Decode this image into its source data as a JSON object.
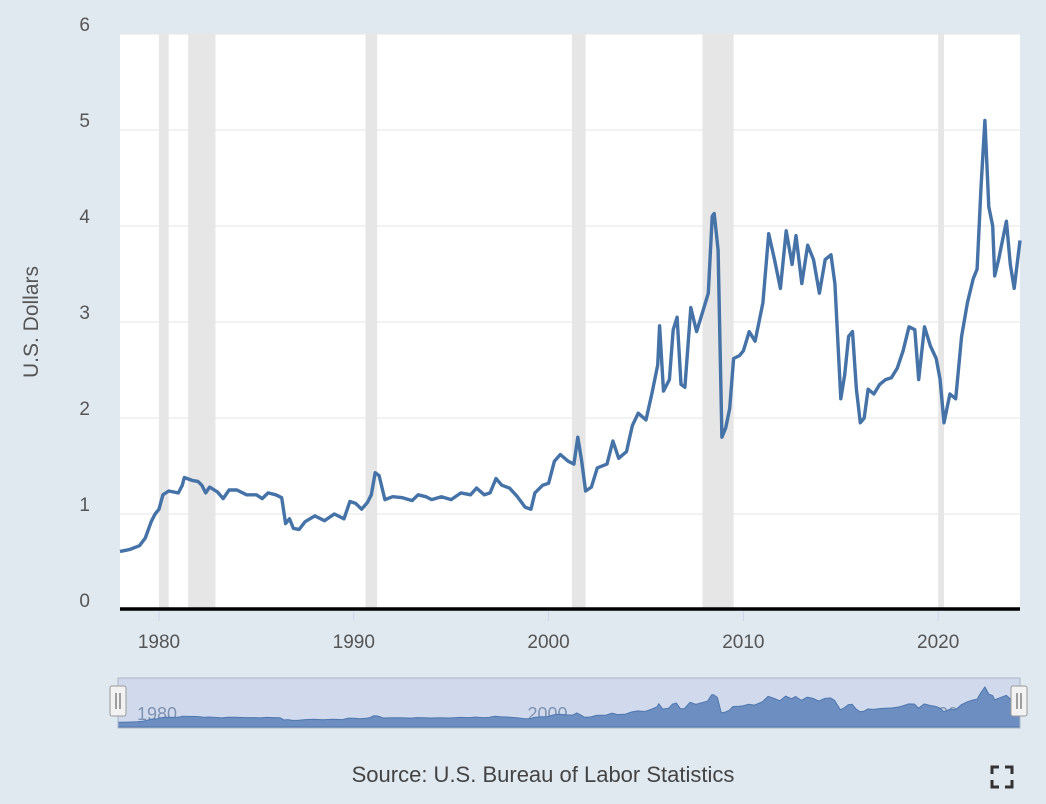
{
  "chart_data": {
    "type": "line",
    "title": "",
    "ylabel": "U.S. Dollars",
    "xlabel": "",
    "source": "Source: U.S. Bureau of Labor Statistics",
    "ylim": [
      0,
      6
    ],
    "xlim": [
      1978.0,
      2024.2
    ],
    "y_ticks": [
      "0",
      "1",
      "2",
      "3",
      "4",
      "5",
      "6"
    ],
    "x_ticks": [
      "1980",
      "1990",
      "2000",
      "2010",
      "2020"
    ],
    "navigator_ticks": [
      "1980",
      "2000",
      "2020"
    ],
    "recessions": [
      [
        1980.0,
        1980.5
      ],
      [
        1981.5,
        1982.9
      ],
      [
        1990.6,
        1991.2
      ],
      [
        2001.2,
        2001.9
      ],
      [
        2007.9,
        2009.5
      ],
      [
        2020.0,
        2020.3
      ]
    ],
    "series": [
      {
        "color": "#4572a7",
        "points": [
          [
            1978.0,
            0.61
          ],
          [
            1978.5,
            0.63
          ],
          [
            1979.0,
            0.67
          ],
          [
            1979.3,
            0.75
          ],
          [
            1979.6,
            0.92
          ],
          [
            1979.8,
            1.0
          ],
          [
            1980.0,
            1.05
          ],
          [
            1980.2,
            1.2
          ],
          [
            1980.5,
            1.24
          ],
          [
            1981.0,
            1.22
          ],
          [
            1981.2,
            1.3
          ],
          [
            1981.3,
            1.38
          ],
          [
            1981.7,
            1.35
          ],
          [
            1982.0,
            1.34
          ],
          [
            1982.2,
            1.3
          ],
          [
            1982.4,
            1.22
          ],
          [
            1982.6,
            1.28
          ],
          [
            1983.0,
            1.23
          ],
          [
            1983.3,
            1.16
          ],
          [
            1983.6,
            1.25
          ],
          [
            1984.0,
            1.25
          ],
          [
            1984.5,
            1.2
          ],
          [
            1985.0,
            1.2
          ],
          [
            1985.3,
            1.16
          ],
          [
            1985.6,
            1.22
          ],
          [
            1986.0,
            1.2
          ],
          [
            1986.3,
            1.17
          ],
          [
            1986.5,
            0.9
          ],
          [
            1986.7,
            0.95
          ],
          [
            1986.9,
            0.85
          ],
          [
            1987.2,
            0.84
          ],
          [
            1987.5,
            0.92
          ],
          [
            1988.0,
            0.98
          ],
          [
            1988.5,
            0.93
          ],
          [
            1989.0,
            1.0
          ],
          [
            1989.5,
            0.95
          ],
          [
            1989.8,
            1.13
          ],
          [
            1990.1,
            1.11
          ],
          [
            1990.4,
            1.05
          ],
          [
            1990.7,
            1.12
          ],
          [
            1990.9,
            1.2
          ],
          [
            1991.1,
            1.43
          ],
          [
            1991.3,
            1.4
          ],
          [
            1991.6,
            1.15
          ],
          [
            1992.0,
            1.18
          ],
          [
            1992.5,
            1.17
          ],
          [
            1993.0,
            1.14
          ],
          [
            1993.3,
            1.2
          ],
          [
            1993.7,
            1.18
          ],
          [
            1994.0,
            1.15
          ],
          [
            1994.5,
            1.18
          ],
          [
            1995.0,
            1.15
          ],
          [
            1995.5,
            1.22
          ],
          [
            1996.0,
            1.2
          ],
          [
            1996.3,
            1.27
          ],
          [
            1996.7,
            1.2
          ],
          [
            1997.0,
            1.22
          ],
          [
            1997.3,
            1.37
          ],
          [
            1997.6,
            1.3
          ],
          [
            1998.0,
            1.27
          ],
          [
            1998.4,
            1.18
          ],
          [
            1998.8,
            1.07
          ],
          [
            1999.1,
            1.05
          ],
          [
            1999.3,
            1.22
          ],
          [
            1999.7,
            1.3
          ],
          [
            2000.0,
            1.32
          ],
          [
            2000.3,
            1.55
          ],
          [
            2000.6,
            1.62
          ],
          [
            2001.0,
            1.55
          ],
          [
            2001.3,
            1.52
          ],
          [
            2001.5,
            1.8
          ],
          [
            2001.7,
            1.55
          ],
          [
            2001.9,
            1.24
          ],
          [
            2002.2,
            1.28
          ],
          [
            2002.5,
            1.48
          ],
          [
            2003.0,
            1.52
          ],
          [
            2003.3,
            1.76
          ],
          [
            2003.6,
            1.58
          ],
          [
            2004.0,
            1.65
          ],
          [
            2004.3,
            1.92
          ],
          [
            2004.6,
            2.05
          ],
          [
            2005.0,
            1.98
          ],
          [
            2005.3,
            2.25
          ],
          [
            2005.6,
            2.55
          ],
          [
            2005.7,
            2.96
          ],
          [
            2005.9,
            2.28
          ],
          [
            2006.2,
            2.4
          ],
          [
            2006.4,
            2.92
          ],
          [
            2006.6,
            3.05
          ],
          [
            2006.8,
            2.35
          ],
          [
            2007.0,
            2.32
          ],
          [
            2007.3,
            3.15
          ],
          [
            2007.6,
            2.9
          ],
          [
            2007.9,
            3.1
          ],
          [
            2008.2,
            3.3
          ],
          [
            2008.4,
            4.1
          ],
          [
            2008.5,
            4.13
          ],
          [
            2008.7,
            3.75
          ],
          [
            2008.9,
            1.8
          ],
          [
            2009.1,
            1.9
          ],
          [
            2009.3,
            2.1
          ],
          [
            2009.5,
            2.62
          ],
          [
            2009.8,
            2.65
          ],
          [
            2010.0,
            2.7
          ],
          [
            2010.3,
            2.9
          ],
          [
            2010.6,
            2.8
          ],
          [
            2011.0,
            3.2
          ],
          [
            2011.3,
            3.92
          ],
          [
            2011.6,
            3.65
          ],
          [
            2011.9,
            3.35
          ],
          [
            2012.2,
            3.95
          ],
          [
            2012.5,
            3.6
          ],
          [
            2012.7,
            3.9
          ],
          [
            2013.0,
            3.4
          ],
          [
            2013.3,
            3.8
          ],
          [
            2013.6,
            3.65
          ],
          [
            2013.9,
            3.3
          ],
          [
            2014.2,
            3.65
          ],
          [
            2014.5,
            3.7
          ],
          [
            2014.7,
            3.4
          ],
          [
            2015.0,
            2.2
          ],
          [
            2015.2,
            2.45
          ],
          [
            2015.4,
            2.85
          ],
          [
            2015.6,
            2.9
          ],
          [
            2015.8,
            2.3
          ],
          [
            2016.0,
            1.95
          ],
          [
            2016.2,
            2.0
          ],
          [
            2016.4,
            2.3
          ],
          [
            2016.7,
            2.25
          ],
          [
            2017.0,
            2.35
          ],
          [
            2017.3,
            2.4
          ],
          [
            2017.6,
            2.42
          ],
          [
            2017.9,
            2.52
          ],
          [
            2018.2,
            2.7
          ],
          [
            2018.5,
            2.95
          ],
          [
            2018.8,
            2.92
          ],
          [
            2019.0,
            2.4
          ],
          [
            2019.3,
            2.95
          ],
          [
            2019.6,
            2.75
          ],
          [
            2019.9,
            2.62
          ],
          [
            2020.1,
            2.4
          ],
          [
            2020.3,
            1.95
          ],
          [
            2020.6,
            2.25
          ],
          [
            2020.9,
            2.2
          ],
          [
            2021.2,
            2.85
          ],
          [
            2021.5,
            3.2
          ],
          [
            2021.8,
            3.45
          ],
          [
            2022.0,
            3.55
          ],
          [
            2022.2,
            4.4
          ],
          [
            2022.4,
            5.1
          ],
          [
            2022.6,
            4.2
          ],
          [
            2022.8,
            4.0
          ],
          [
            2022.9,
            3.48
          ],
          [
            2023.1,
            3.65
          ],
          [
            2023.3,
            3.85
          ],
          [
            2023.5,
            4.05
          ],
          [
            2023.7,
            3.6
          ],
          [
            2023.9,
            3.35
          ],
          [
            2024.2,
            3.85
          ]
        ]
      }
    ]
  }
}
